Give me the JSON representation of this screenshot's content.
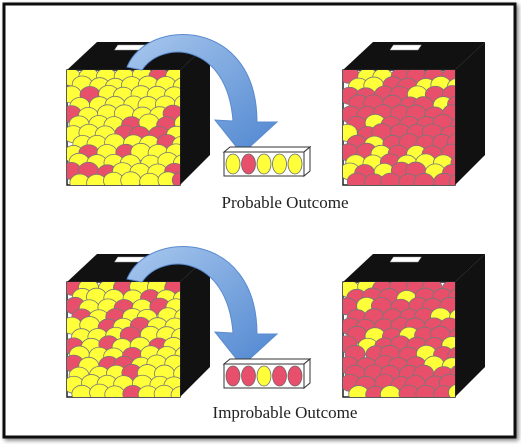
{
  "panels": [
    {
      "caption": "Probable Outcome"
    },
    {
      "caption": "Improbable Outcome"
    }
  ]
}
